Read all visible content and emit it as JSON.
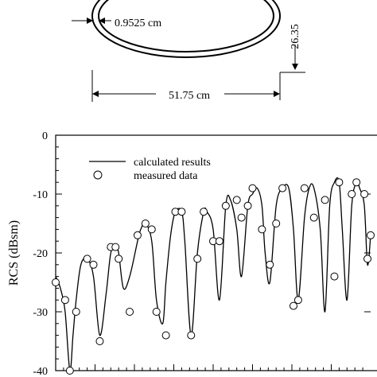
{
  "diagram": {
    "thickness_label": "0.9525 cm",
    "height_label": "26.35",
    "width_label": "51.75 cm"
  },
  "chart_data": {
    "type": "line",
    "title": "",
    "xlabel": "",
    "ylabel": "RCS (dBsm)",
    "ylim": [
      -40,
      0
    ],
    "yticks": [
      0,
      -10,
      -20,
      -30,
      -40
    ],
    "ytick_labels": [
      "0",
      "-10",
      "-20",
      "-30",
      "-40"
    ],
    "xlim": [
      0,
      1
    ],
    "grid": false,
    "legend": {
      "placement": "top-left"
    },
    "series": [
      {
        "name": "calculated results",
        "style": "line",
        "x": [
          0.0,
          0.015,
          0.03,
          0.045,
          0.055,
          0.065,
          0.08,
          0.1,
          0.12,
          0.14,
          0.16,
          0.175,
          0.19,
          0.2,
          0.215,
          0.235,
          0.26,
          0.27,
          0.285,
          0.305,
          0.32,
          0.34,
          0.35,
          0.365,
          0.38,
          0.4,
          0.41,
          0.43,
          0.45,
          0.47,
          0.48,
          0.5,
          0.52,
          0.54,
          0.555,
          0.575,
          0.59,
          0.61,
          0.625,
          0.64,
          0.655,
          0.665,
          0.68,
          0.7,
          0.72,
          0.74,
          0.755,
          0.77,
          0.79,
          0.805,
          0.82,
          0.84,
          0.855,
          0.87,
          0.885,
          0.9,
          0.91,
          0.925,
          0.94,
          0.955,
          0.965,
          0.98,
          0.99,
          1.0
        ],
        "values": [
          -24,
          -26,
          -30,
          -40,
          -34,
          -28,
          -22,
          -21,
          -24,
          -34,
          -27,
          -20,
          -19,
          -20,
          -26,
          -24,
          -18,
          -16,
          -15,
          -18,
          -28,
          -32,
          -25,
          -17,
          -13,
          -13,
          -18,
          -34,
          -20,
          -13,
          -13,
          -16,
          -28,
          -12,
          -11,
          -16,
          -24,
          -12,
          -10,
          -9,
          -12,
          -20,
          -25,
          -12,
          -9,
          -9,
          -16,
          -28,
          -14,
          -9,
          -9,
          -16,
          -30,
          -12,
          -8,
          -8,
          -16,
          -28,
          -12,
          -8,
          -9,
          -12,
          -22,
          -17
        ]
      },
      {
        "name": "measured data",
        "style": "markers",
        "x": [
          0.0,
          0.03,
          0.045,
          0.065,
          0.1,
          0.12,
          0.14,
          0.175,
          0.19,
          0.2,
          0.235,
          0.26,
          0.285,
          0.305,
          0.32,
          0.35,
          0.38,
          0.4,
          0.43,
          0.45,
          0.47,
          0.5,
          0.52,
          0.54,
          0.575,
          0.59,
          0.61,
          0.625,
          0.655,
          0.68,
          0.7,
          0.72,
          0.755,
          0.77,
          0.79,
          0.82,
          0.855,
          0.885,
          0.9,
          0.94,
          0.955,
          0.98,
          0.99,
          1.0
        ],
        "values": [
          -25,
          -28,
          -40,
          -30,
          -21,
          -22,
          -35,
          -19,
          -19,
          -21,
          -30,
          -17,
          -15,
          -16,
          -30,
          -34,
          -13,
          -13,
          -34,
          -21,
          -13,
          -18,
          -18,
          -12,
          -11,
          -14,
          -12,
          -9,
          -16,
          -22,
          -15,
          -9,
          -29,
          -28,
          -9,
          -14,
          -11,
          -24,
          -8,
          -10,
          -8,
          -10,
          -21,
          -17
        ]
      }
    ]
  }
}
